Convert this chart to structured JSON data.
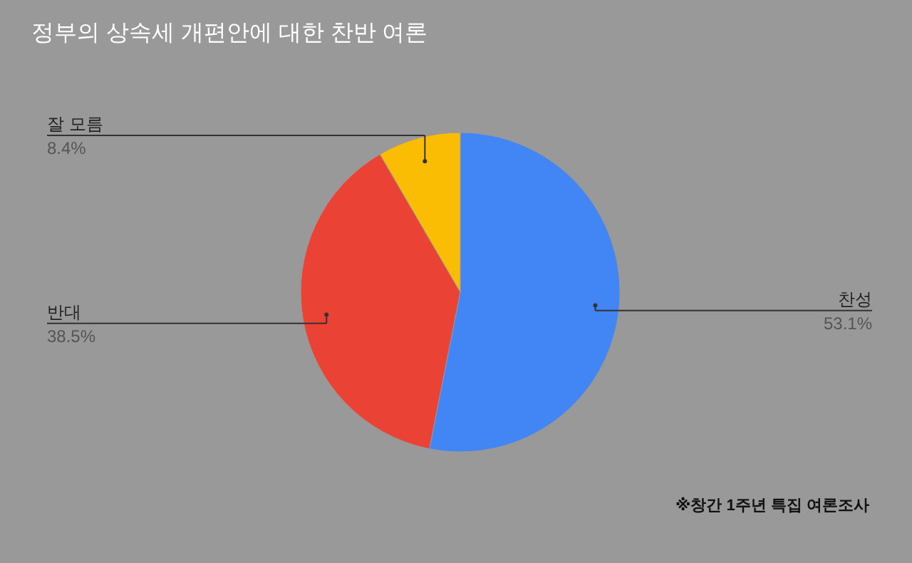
{
  "chart_data": {
    "type": "pie",
    "title": "정부의 상속세 개편안에 대한 찬반 여론",
    "categories": [
      "찬성",
      "반대",
      "잘 모름"
    ],
    "values": [
      53.1,
      38.5,
      8.4
    ],
    "value_labels": [
      "53.1%",
      "38.5%",
      "8.4%"
    ],
    "colors": [
      "#4285f4",
      "#ea4335",
      "#fbbc04"
    ],
    "annotations": [
      "※창간 1주년 특집 여론조사"
    ]
  }
}
